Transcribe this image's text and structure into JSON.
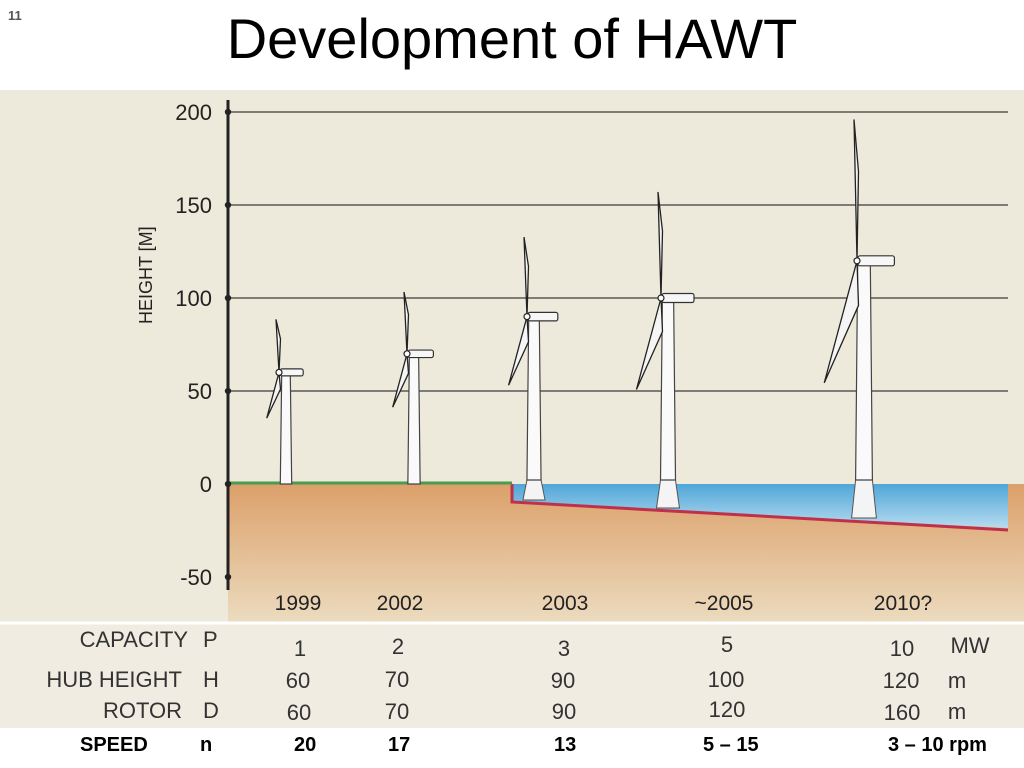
{
  "slide": {
    "number": "11",
    "title": "Development of HAWT"
  },
  "axis": {
    "label": "HEIGHT [M]",
    "ticks": [
      "200",
      "150",
      "100",
      "50",
      "0",
      "-50"
    ],
    "ticks_values": [
      200,
      150,
      100,
      50,
      0,
      -50
    ]
  },
  "columns": {
    "years": [
      "1999",
      "2002",
      "2003",
      "~2005",
      "2010?"
    ],
    "capacity": [
      "1",
      "2",
      "3",
      "5",
      "10"
    ],
    "hub_height": [
      "60",
      "70",
      "90",
      "100",
      "120"
    ],
    "rotor": [
      "60",
      "70",
      "90",
      "120",
      "160"
    ],
    "speed": [
      "20",
      "17",
      "13",
      "5 – 15",
      "3 – 10 rpm"
    ]
  },
  "rows": {
    "capacity": {
      "label": "CAPACITY",
      "symbol": "P",
      "unit": "MW"
    },
    "hub_height": {
      "label": "HUB HEIGHT",
      "symbol": "H",
      "unit": "m"
    },
    "rotor": {
      "label": "ROTOR",
      "symbol": "D",
      "unit": "m"
    },
    "speed": {
      "label": "SPEED",
      "symbol": "n"
    }
  },
  "colors": {
    "background": "#eeeadb",
    "ground_top": "#dca06a",
    "ground_bottom": "#ecdcc0",
    "water_top": "#4fa6d8",
    "water_bottom": "#b6dbef",
    "seabed_line": "#c0304a",
    "grass_line": "#4a9a50"
  }
}
